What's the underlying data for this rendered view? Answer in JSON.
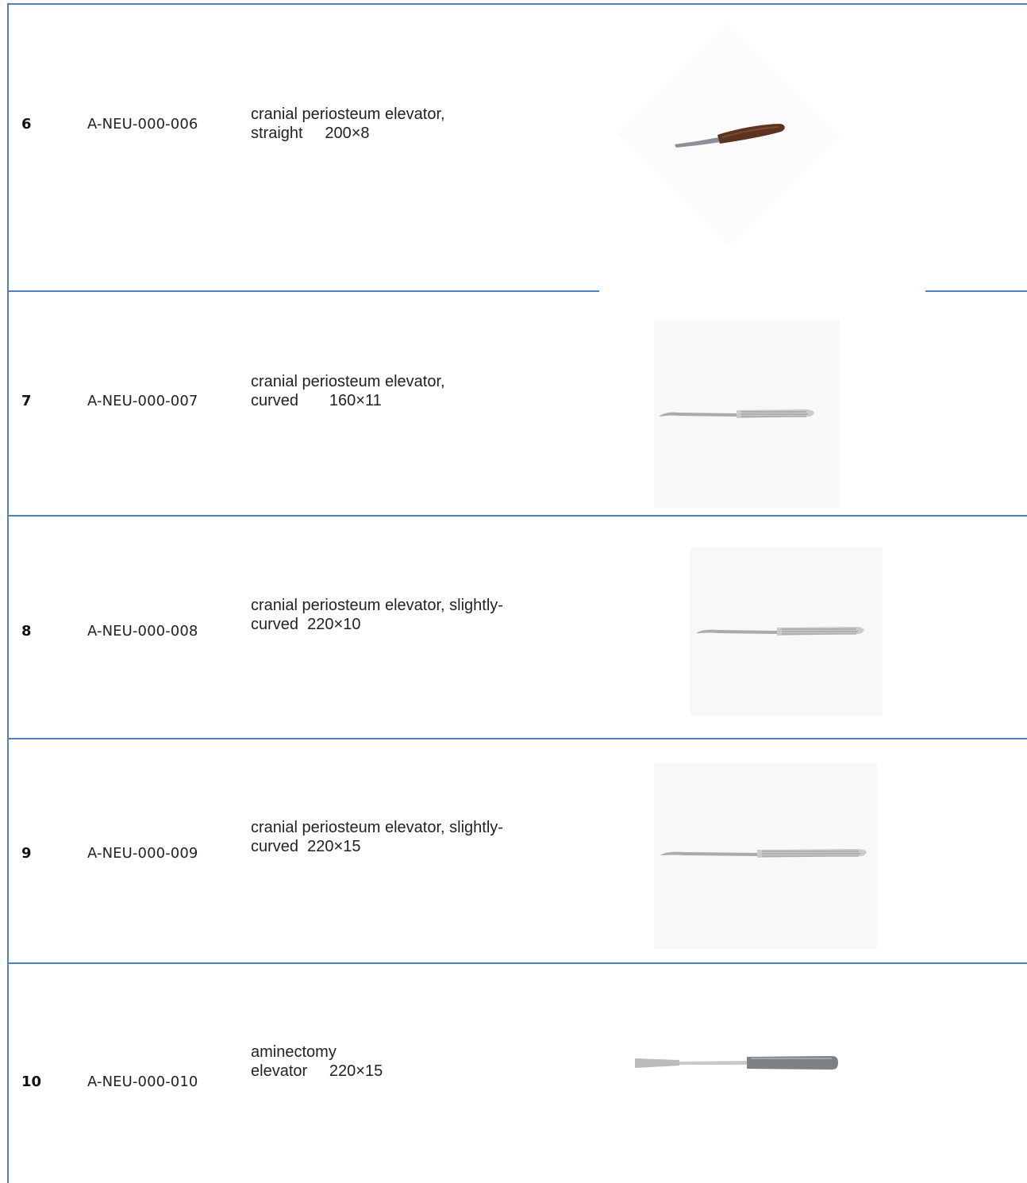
{
  "rows": [
    {
      "num": "6",
      "code": "A-NEU-000-006",
      "desc_line1": "cranial periosteum elevator,",
      "desc_line2": "straight     200×8",
      "image_icon": "periosteum-elevator-wood-handle-photo"
    },
    {
      "num": "7",
      "code": "A-NEU-000-007",
      "desc_line1": "cranial periosteum elevator,",
      "desc_line2": "curved       160×11",
      "image_icon": "periosteum-elevator-curved-photo"
    },
    {
      "num": "8",
      "code": "A-NEU-000-008",
      "desc_line1": "cranial periosteum elevator, slightly-",
      "desc_line2": "curved  220×10",
      "image_icon": "periosteum-elevator-slightly-curved-photo"
    },
    {
      "num": "9",
      "code": "A-NEU-000-009",
      "desc_line1": "cranial periosteum elevator, slightly-",
      "desc_line2": "curved  220×15",
      "image_icon": "periosteum-elevator-slightly-curved-photo"
    },
    {
      "num": "10",
      "code": "A-NEU-000-010",
      "desc_line1": "aminectomy",
      "desc_line2": "elevator     220×15",
      "image_icon": "laminectomy-elevator-photo"
    }
  ],
  "colors": {
    "border": "#4f81bd"
  }
}
